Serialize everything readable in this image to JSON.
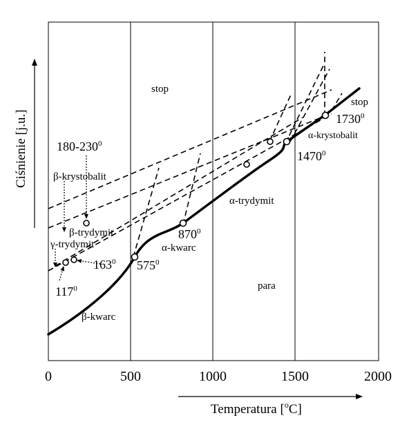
{
  "axes": {
    "x_title": "Temperatura [",
    "x_unit_sup": "o",
    "x_unit_tail": "C]",
    "y_title": "Ciśnienie [j.u.]",
    "x_ticks": [
      "0",
      "500",
      "1000",
      "1500",
      "2000"
    ]
  },
  "regions": {
    "stop": "stop",
    "stop_upper": "stop",
    "para": "para"
  },
  "phases": {
    "beta_kwarc": "β-kwarc",
    "alpha_kwarc": "α-kwarc",
    "alpha_trydymit": "α-trydymit",
    "alpha_krystobalit": "α-krystobalit",
    "beta_krystobalit": "β-krystobalit",
    "beta_trydymit": "β-trydymit",
    "gamma_trydymit": "γ-trydymit"
  },
  "transitions": {
    "t575": {
      "value": "575",
      "sup": "0"
    },
    "t870": {
      "value": "870",
      "sup": "0"
    },
    "t1470": {
      "value": "1470",
      "sup": "0"
    },
    "t1730": {
      "value": "1730",
      "sup": "0"
    },
    "t163": {
      "value": "163",
      "sup": "0"
    },
    "t117": {
      "value": "117",
      "sup": "0"
    },
    "t180_230": {
      "value": "180-230",
      "sup": "0"
    }
  }
}
